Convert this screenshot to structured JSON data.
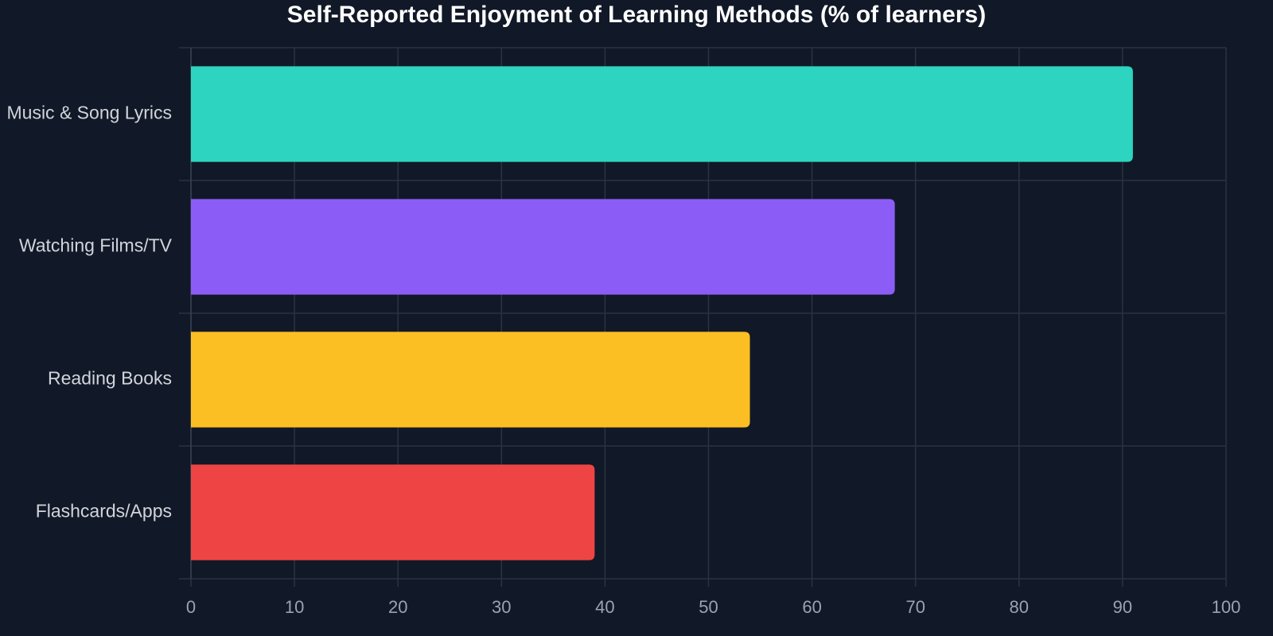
{
  "chart_data": {
    "type": "bar",
    "orientation": "horizontal",
    "title": "Self-Reported Enjoyment of Learning Methods (% of learners)",
    "categories": [
      "Music & Song Lyrics",
      "Watching Films/TV",
      "Reading Books",
      "Flashcards/Apps"
    ],
    "values": [
      91,
      68,
      54,
      39
    ],
    "colors": [
      "#2dd4bf",
      "#8b5cf6",
      "#fbbf24",
      "#ef4444"
    ],
    "xlim": [
      0,
      100
    ],
    "xticks": [
      0,
      10,
      20,
      30,
      40,
      50,
      60,
      70,
      80,
      90,
      100
    ],
    "grid": true
  }
}
